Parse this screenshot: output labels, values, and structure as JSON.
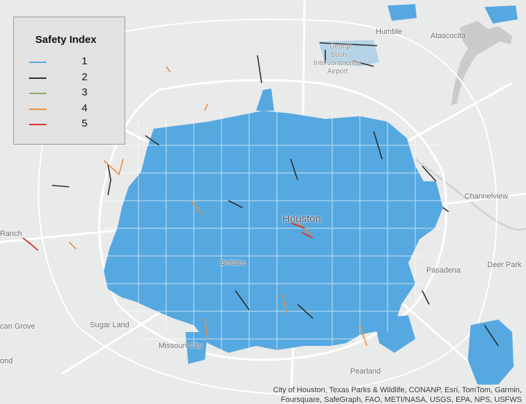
{
  "map": {
    "places": {
      "humble": "Humble",
      "atascocita": "Atascocita",
      "airport_line1": "George",
      "airport_line2": "Bush",
      "airport_line3": "Intercontinental",
      "airport_line4": "Airport",
      "channelview": "Channelview",
      "houston": "Houston",
      "ranch": "Ranch",
      "bellaire": "Bellaire",
      "pasadena": "Pasadena",
      "deer_park": "Deer Park",
      "can_grove": "can Grove",
      "sugar_land": "Sugar Land",
      "missouri_city": "Missouri City",
      "pearland": "Pearland",
      "ond": "ond"
    },
    "attribution": [
      "City of Houston, Texas Parks & Wildlife, CONANP, Esri, TomTom, Garmin,",
      "Foursquare, SafeGraph, FAO, METI/NASA, USGS, EPA, NPS, USFWS"
    ],
    "colors": {
      "background": "#e9eaea",
      "highway": "#ffffff",
      "water": "#c9cbcc",
      "network_fill": "#56a8e0"
    }
  },
  "legend": {
    "title": "Safety Index",
    "items": [
      {
        "label": "1",
        "color": "#5aa9e0"
      },
      {
        "label": "2",
        "color": "#2b2b2b"
      },
      {
        "label": "3",
        "color": "#8fa86a"
      },
      {
        "label": "4",
        "color": "#f08c3c"
      },
      {
        "label": "5",
        "color": "#d9322b"
      }
    ]
  }
}
